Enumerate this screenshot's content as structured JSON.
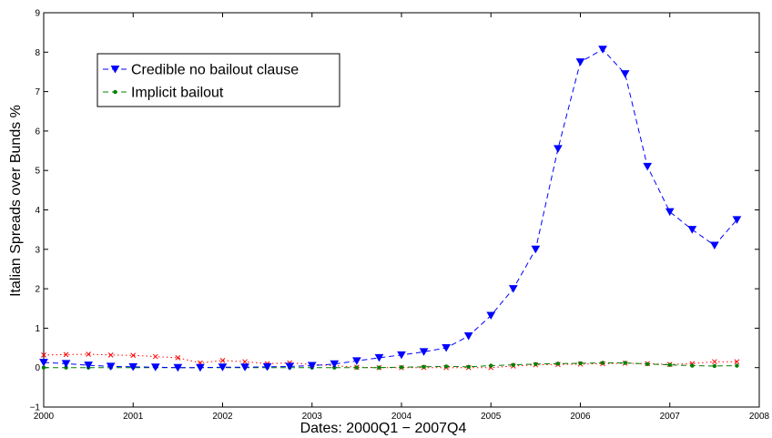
{
  "chart_data": {
    "type": "line",
    "title": "",
    "xlabel": "Dates: 2000Q1 − 2007Q4",
    "ylabel": "Italian Spreads over Bunds %",
    "xlim": [
      2000,
      2008
    ],
    "ylim": [
      -1,
      9
    ],
    "xticks": [
      "2000",
      "2001",
      "2002",
      "2003",
      "2004",
      "2005",
      "2006",
      "2007",
      "2008"
    ],
    "yticks": [
      "−1",
      "0",
      "1",
      "2",
      "3",
      "4",
      "5",
      "6",
      "7",
      "8",
      "9"
    ],
    "grid": false,
    "legend_position": "top-left",
    "x": [
      2000,
      2000.25,
      2000.5,
      2000.75,
      2001,
      2001.25,
      2001.5,
      2001.75,
      2002,
      2002.25,
      2002.5,
      2002.75,
      2003,
      2003.25,
      2003.5,
      2003.75,
      2004,
      2004.25,
      2004.5,
      2004.75,
      2005,
      2005.25,
      2005.5,
      2005.75,
      2006,
      2006.25,
      2006.5,
      2006.75,
      2007,
      2007.25,
      2007.5,
      2007.75
    ],
    "series": [
      {
        "name": "Credible no bailout clause",
        "color": "#0000ff",
        "marker": "triangle-down",
        "linestyle": "dashed",
        "values": [
          0.13,
          0.1,
          0.06,
          0.03,
          0.02,
          0.01,
          0.0,
          0.0,
          0.01,
          0.01,
          0.02,
          0.03,
          0.05,
          0.09,
          0.17,
          0.25,
          0.32,
          0.4,
          0.5,
          0.8,
          1.32,
          2.0,
          3.0,
          5.55,
          7.75,
          8.07,
          7.45,
          5.1,
          3.95,
          3.5,
          3.1,
          3.75
        ]
      },
      {
        "name": "Implicit bailout",
        "color": "#008000",
        "marker": "dot",
        "linestyle": "dashed",
        "values": [
          0.0,
          0.0,
          0.0,
          0.0,
          0.0,
          0.0,
          0.0,
          0.0,
          0.0,
          0.0,
          0.0,
          0.0,
          0.0,
          0.0,
          0.0,
          0.0,
          0.01,
          0.02,
          0.03,
          0.02,
          0.05,
          0.07,
          0.09,
          0.1,
          0.11,
          0.12,
          0.12,
          0.09,
          0.07,
          0.05,
          0.04,
          0.05
        ]
      },
      {
        "name": "",
        "color": "#ff0000",
        "marker": "x",
        "linestyle": "dotted",
        "values": [
          0.32,
          0.33,
          0.34,
          0.32,
          0.31,
          0.28,
          0.25,
          0.12,
          0.18,
          0.15,
          0.1,
          0.12,
          0.08,
          0.05,
          0.01,
          0.0,
          0.0,
          0.0,
          0.0,
          0.0,
          0.0,
          0.04,
          0.07,
          0.08,
          0.09,
          0.1,
          0.11,
          0.1,
          0.08,
          0.1,
          0.15,
          0.15
        ]
      }
    ],
    "legend": [
      {
        "label": "Credible no bailout clause",
        "series": 0
      },
      {
        "label": "Implicit bailout",
        "series": 1
      }
    ]
  }
}
